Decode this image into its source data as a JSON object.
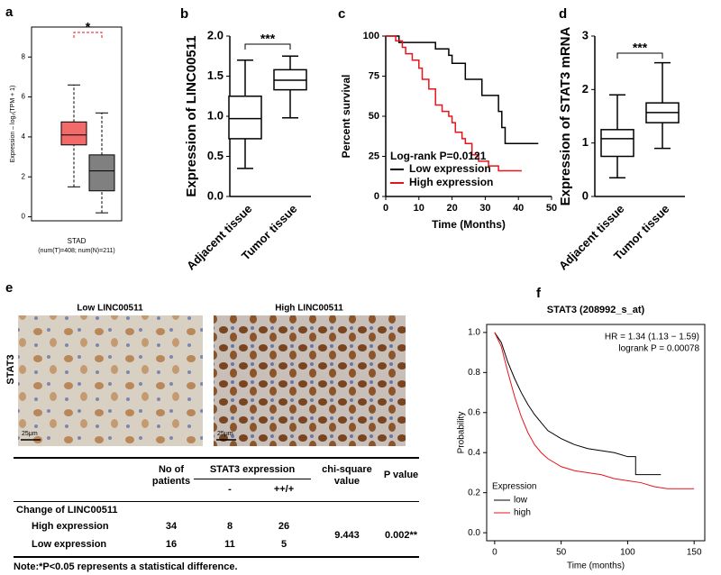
{
  "chart_data": [
    {
      "type": "box",
      "panel": "a",
      "ylabel": "Expression – log₂(TPM + 1)",
      "xlabel": "STAD",
      "note": "(num(T)=408; num(N)=211)",
      "annotation": "*",
      "ylim": [
        -0.2,
        9.5
      ],
      "yticks": [
        0,
        2,
        4,
        6,
        8
      ],
      "frame": true,
      "boxes": [
        {
          "color": "#f26b6b",
          "min": 1.5,
          "q1": 3.6,
          "median": 4.1,
          "q3": 4.75,
          "max": 6.6
        },
        {
          "color": "#808080",
          "min": 0.2,
          "q1": 1.3,
          "median": 2.3,
          "q3": 3.1,
          "max": 5.2
        }
      ]
    },
    {
      "type": "box",
      "panel": "b",
      "ylabel": "Expression of LINC00511",
      "annotation": "***",
      "ylim": [
        0,
        2
      ],
      "yticks": [
        {
          "value": 0,
          "label": "0.0"
        },
        {
          "value": 0.5,
          "label": "0.5"
        },
        {
          "value": 1,
          "label": "1.0"
        },
        {
          "value": 1.5,
          "label": "1.5"
        },
        {
          "value": 2,
          "label": "2.0"
        }
      ],
      "categories": [
        "Adjacent tissue",
        "Tumor tissue"
      ],
      "boxes": [
        {
          "color": "#ffffff",
          "min": 0.35,
          "q1": 0.72,
          "median": 0.97,
          "q3": 1.25,
          "max": 1.7
        },
        {
          "color": "#ffffff",
          "min": 0.98,
          "q1": 1.33,
          "median": 1.45,
          "q3": 1.58,
          "max": 1.75
        }
      ]
    },
    {
      "type": "line",
      "panel": "c",
      "ylabel": "Percent survival",
      "xlabel": "Time (Months)",
      "annotation": "Log-rank P=0.0121",
      "xlim": [
        0,
        50
      ],
      "xticks": [
        0,
        10,
        20,
        30,
        40,
        50
      ],
      "ylim": [
        0,
        100
      ],
      "yticks": [
        0,
        25,
        50,
        75,
        100
      ],
      "series": [
        {
          "name": "Low expression",
          "color": "#000000",
          "x": [
            0,
            4,
            4,
            15,
            15,
            19,
            19,
            20,
            20,
            24,
            24,
            29,
            29,
            34,
            34,
            35,
            35,
            36,
            36,
            46
          ],
          "values": [
            100,
            100,
            96,
            96,
            92,
            92,
            88,
            88,
            83,
            83,
            73,
            73,
            63,
            63,
            53,
            53,
            43,
            43,
            33,
            33
          ]
        },
        {
          "name": "High expression",
          "color": "#e8141b",
          "x": [
            0,
            3,
            3,
            5,
            5,
            6,
            6,
            8,
            8,
            10,
            10,
            11,
            11,
            13,
            13,
            15,
            15,
            17,
            17,
            19,
            19,
            20,
            20,
            21,
            21,
            23,
            23,
            24,
            24,
            26,
            26,
            28,
            28,
            31,
            31,
            34,
            34,
            41
          ],
          "values": [
            100,
            100,
            97,
            97,
            93,
            93,
            89,
            89,
            85,
            85,
            80,
            80,
            73,
            73,
            67,
            67,
            57,
            57,
            53,
            53,
            50,
            50,
            46,
            46,
            40,
            40,
            36,
            36,
            33,
            33,
            26,
            26,
            22,
            22,
            19,
            19,
            16,
            16
          ]
        }
      ]
    },
    {
      "type": "box",
      "panel": "d",
      "ylabel": "Expression of STAT3 mRNA",
      "annotation": "***",
      "ylim": [
        0,
        3
      ],
      "yticks": [
        0,
        1,
        2,
        3
      ],
      "categories": [
        "Adjacent tissue",
        "Tumor tissue"
      ],
      "boxes": [
        {
          "color": "#ffffff",
          "min": 0.35,
          "q1": 0.75,
          "median": 1.08,
          "q3": 1.25,
          "max": 1.9
        },
        {
          "color": "#ffffff",
          "min": 0.9,
          "q1": 1.38,
          "median": 1.57,
          "q3": 1.75,
          "max": 2.5
        }
      ]
    },
    {
      "type": "line",
      "panel": "f",
      "title": "STAT3 (208992_s_at)",
      "ylabel": "Probability",
      "xlabel": "Time (months)",
      "annotations": [
        "HR = 1.34 (1.13 − 1.59)",
        "logrank P = 0.00078"
      ],
      "legend_title": "Expression",
      "frame": true,
      "xlim": [
        -6,
        158
      ],
      "xticks": [
        0,
        50,
        100,
        150
      ],
      "ylim": [
        -0.04,
        1.04
      ],
      "yticks": [
        {
          "value": 0,
          "label": "0.0"
        },
        {
          "value": 0.2,
          "label": "0.2"
        },
        {
          "value": 0.4,
          "label": "0.4"
        },
        {
          "value": 0.6,
          "label": "0.6"
        },
        {
          "value": 0.8,
          "label": "0.8"
        },
        {
          "value": 1,
          "label": "1.0"
        }
      ],
      "series": [
        {
          "name": "low",
          "color": "#000000",
          "x": [
            0,
            5,
            10,
            15,
            20,
            25,
            30,
            35,
            40,
            50,
            60,
            70,
            80,
            90,
            100,
            106,
            106,
            125
          ],
          "values": [
            1.0,
            0.95,
            0.85,
            0.77,
            0.7,
            0.64,
            0.59,
            0.55,
            0.51,
            0.47,
            0.44,
            0.42,
            0.41,
            0.4,
            0.38,
            0.38,
            0.29,
            0.29
          ]
        },
        {
          "name": "high",
          "color": "#e8141b",
          "x": [
            0,
            5,
            10,
            15,
            20,
            25,
            30,
            35,
            40,
            50,
            60,
            70,
            80,
            90,
            100,
            110,
            120,
            130,
            150
          ],
          "values": [
            1.0,
            0.93,
            0.8,
            0.68,
            0.58,
            0.5,
            0.44,
            0.4,
            0.37,
            0.33,
            0.31,
            0.3,
            0.29,
            0.27,
            0.26,
            0.25,
            0.23,
            0.22,
            0.22
          ]
        }
      ]
    }
  ],
  "panel_e": {
    "panel": "e",
    "row_label": "STAT3",
    "images": [
      {
        "title": "Low LINC00511",
        "scale": "25μm"
      },
      {
        "title": "High LINC00511",
        "scale": "25μm"
      }
    ],
    "table": {
      "headers": {
        "patients": "No of patients",
        "stat3": "STAT3 expression",
        "neg": "-",
        "pos": "++/+",
        "chi": "chi-square value",
        "p": "P value"
      },
      "group": "Change of LINC00511",
      "rows": [
        {
          "label": "High expression",
          "n": 34,
          "neg": 8,
          "pos": 26
        },
        {
          "label": "Low expression",
          "n": 16,
          "neg": 11,
          "pos": 5
        }
      ],
      "chi_square": 9.443,
      "p_value": "0.002**",
      "note": "Note:*P<0.05 represents a statistical difference."
    }
  }
}
